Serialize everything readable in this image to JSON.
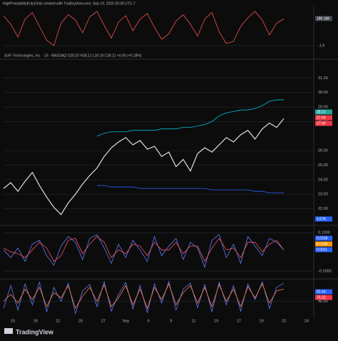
{
  "header": "HighProbabilityEntryOnly created with TradingView.com, Sep 19, 2025 05:28 UTC-7",
  "legend": "SoFi Technologies, Inc. · 15 · NASDAQ  O28.20 H28.21 L28.19 C28.21 +0.05 (+0.18%)",
  "footer": "TradingView",
  "x_labels": [
    "15",
    "19",
    "21",
    "25",
    "27",
    "Sep",
    "5",
    "9",
    "11",
    "15",
    "17",
    "19",
    "22",
    "24"
  ],
  "chart_data": [
    {
      "type": "line",
      "ylim": [
        -2,
        2
      ],
      "yticks": [
        -1.6
      ],
      "tags": [
        {
          "text": "180.16K",
          "color": "#434651"
        }
      ],
      "series": [
        {
          "color": "#ef5350",
          "values": [
            1.2,
            0.4,
            -0.8,
            0.9,
            1.5,
            0.2,
            -1.1,
            -1.6,
            0.5,
            1.3,
            0.8,
            -0.4,
            1.1,
            1.6,
            0.3,
            -0.9,
            0.6,
            1.2,
            -0.2,
            0.9,
            1.4,
            0.1,
            -1.0,
            -0.5,
            0.7,
            1.3,
            0.4,
            -0.7,
            0.9,
            1.5,
            -0.3,
            -1.4,
            -1.2,
            0.2,
            1.0,
            1.6,
            0.8,
            -0.6,
            0.5,
            0.9
          ]
        }
      ]
    },
    {
      "type": "line",
      "ylim": [
        20.9,
        32.2
      ],
      "yticks": [
        {
          "value": 31,
          "label": "31.00"
        },
        {
          "value": 30,
          "label": "30.00"
        },
        {
          "value": 29,
          "label": "29.00"
        },
        {
          "value": 28,
          "label": "28.00"
        },
        {
          "value": 26,
          "label": "26.00"
        },
        {
          "value": 25,
          "label": "25.00"
        },
        {
          "value": 24,
          "label": "24.00"
        },
        {
          "value": 23,
          "label": "23.00"
        },
        {
          "value": 22,
          "label": "22.00"
        }
      ],
      "tags": [
        {
          "text": "28.21",
          "color": "#26a69a"
        },
        {
          "text": "27.99",
          "color": "#f23645"
        },
        {
          "text": "27.00",
          "color": "#f23645"
        },
        {
          "text": "5.67K",
          "color": "#2962ff"
        }
      ],
      "series": [
        {
          "color": "#e0e0e0",
          "values": [
            23.4,
            23.8,
            23.2,
            23.9,
            24.5,
            23.6,
            22.8,
            22.1,
            21.6,
            22.4,
            23.0,
            23.7,
            24.3,
            24.8,
            25.6,
            26.2,
            26.6,
            26.9,
            26.4,
            26.7,
            26.1,
            26.3,
            25.6,
            25.9,
            24.9,
            25.4,
            24.6,
            25.8,
            26.2,
            25.9,
            26.4,
            26.9,
            26.6,
            27.1,
            27.4,
            26.8,
            27.5,
            27.9,
            27.6,
            28.21
          ]
        },
        {
          "color": "#00bcd4",
          "values": [
            null,
            null,
            null,
            null,
            null,
            null,
            null,
            null,
            null,
            null,
            null,
            null,
            null,
            27.0,
            27.2,
            27.3,
            27.3,
            27.3,
            27.4,
            27.4,
            27.4,
            27.4,
            27.5,
            27.5,
            27.5,
            27.6,
            27.6,
            27.7,
            27.8,
            28.0,
            28.4,
            28.6,
            28.7,
            28.8,
            28.8,
            28.9,
            29.1,
            29.4,
            29.5,
            29.5
          ]
        },
        {
          "color": "#2962ff",
          "values": [
            null,
            null,
            null,
            null,
            null,
            null,
            null,
            null,
            null,
            null,
            null,
            null,
            null,
            23.6,
            23.6,
            23.5,
            23.5,
            23.5,
            23.5,
            23.4,
            23.4,
            23.4,
            23.4,
            23.4,
            23.4,
            23.4,
            23.4,
            23.4,
            23.4,
            23.3,
            23.3,
            23.3,
            23.3,
            23.3,
            23.3,
            23.2,
            23.2,
            23.1,
            23.1,
            23.1
          ]
        }
      ]
    },
    {
      "type": "line",
      "ylim": [
        -0.13,
        0.13
      ],
      "yticks": [
        {
          "value": 0.1,
          "label": "0.1000"
        },
        {
          "value": -0.1,
          "label": "-0.1000"
        }
      ],
      "tags": [
        {
          "text": "0.0108",
          "color": "#2962ff"
        },
        {
          "text": "0.0108",
          "color": "#ff9800"
        },
        {
          "text": "0.0011",
          "color": "#2962ff"
        }
      ],
      "series": [
        {
          "color": "#5b7cfa",
          "values": [
            0.01,
            -0.03,
            0.02,
            -0.05,
            0.04,
            0.06,
            -0.02,
            -0.07,
            0.03,
            0.08,
            0.05,
            -0.04,
            0.07,
            0.09,
            0.02,
            -0.06,
            0.04,
            -0.03,
            0.06,
            0.01,
            -0.05,
            0.08,
            -0.02,
            0.03,
            0.07,
            -0.04,
            0.05,
            0.02,
            -0.08,
            0.06,
            0.09,
            -0.03,
            0.04,
            -0.06,
            0.08,
            0.03,
            -0.02,
            0.07,
            0.05,
            0.01
          ]
        },
        {
          "color": "#f7525f",
          "values": [
            0.02,
            0.0,
            -0.01,
            -0.03,
            0.01,
            0.05,
            0.02,
            -0.05,
            -0.02,
            0.06,
            0.07,
            -0.01,
            0.04,
            0.08,
            0.05,
            -0.03,
            0.01,
            -0.01,
            0.04,
            0.03,
            -0.02,
            0.05,
            0.01,
            0.01,
            0.05,
            -0.01,
            0.03,
            0.03,
            -0.05,
            0.02,
            0.07,
            0.01,
            0.02,
            -0.03,
            0.05,
            0.05,
            0.0,
            0.04,
            0.06,
            0.01
          ]
        }
      ]
    },
    {
      "type": "line",
      "ylim": [
        0,
        100
      ],
      "yticks": [
        {
          "value": 40,
          "label": "40.00"
        }
      ],
      "tags": [
        {
          "text": "92.43",
          "color": "#2962ff"
        },
        {
          "text": "75.22",
          "color": "#f23645"
        }
      ],
      "series": [
        {
          "color": "#5b7cfa",
          "values": [
            20,
            85,
            15,
            90,
            30,
            95,
            10,
            80,
            40,
            92,
            5,
            70,
            88,
            25,
            96,
            12,
            60,
            94,
            18,
            85,
            8,
            90,
            35,
            97,
            15,
            75,
            92,
            22,
            88,
            10,
            95,
            30,
            85,
            12,
            90,
            45,
            96,
            20,
            80,
            92
          ]
        },
        {
          "color": "#ff7a45",
          "values": [
            40,
            60,
            35,
            75,
            45,
            80,
            25,
            65,
            50,
            85,
            20,
            55,
            80,
            40,
            88,
            25,
            50,
            85,
            30,
            75,
            20,
            80,
            45,
            90,
            30,
            65,
            85,
            35,
            80,
            25,
            88,
            40,
            75,
            25,
            82,
            50,
            90,
            35,
            70,
            75
          ]
        }
      ]
    }
  ]
}
